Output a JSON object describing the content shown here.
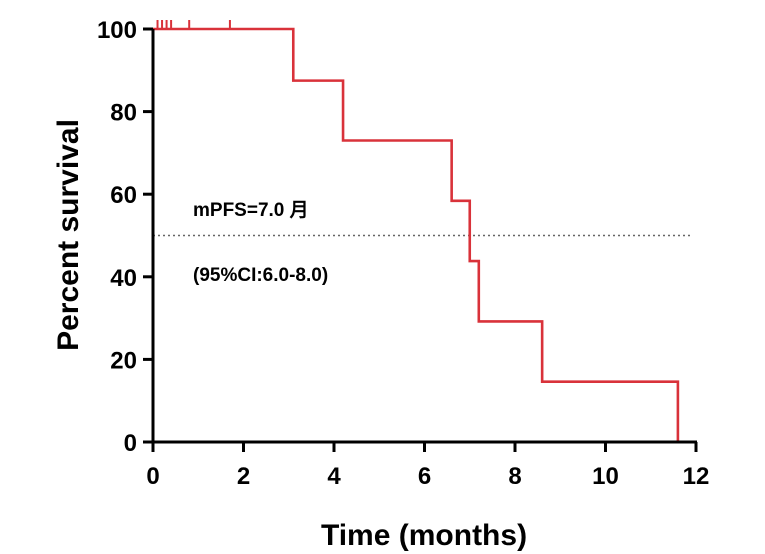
{
  "chart_data": {
    "type": "line",
    "subtype": "kaplan-meier survival curve",
    "xlabel": "Time (months)",
    "ylabel": "Percent survival",
    "xlim": [
      0,
      12
    ],
    "ylim": [
      0,
      100
    ],
    "xticks": [
      "0",
      "2",
      "4",
      "6",
      "8",
      "10",
      "12"
    ],
    "yticks": [
      "0",
      "20",
      "40",
      "60",
      "80",
      "100"
    ],
    "grid": false,
    "series_color": "#d9323a",
    "reference_line": {
      "y": 50,
      "style": "dotted",
      "color": "#666666"
    },
    "series": [
      {
        "steps": [
          {
            "x": 0,
            "y": 100
          },
          {
            "x": 3.1,
            "y": 87.5
          },
          {
            "x": 4.2,
            "y": 73
          },
          {
            "x": 6.6,
            "y": 58.4
          },
          {
            "x": 7.0,
            "y": 43.8
          },
          {
            "x": 7.2,
            "y": 29.2
          },
          {
            "x": 8.6,
            "y": 14.6
          },
          {
            "x": 11.6,
            "y": 0
          }
        ],
        "censored_x": [
          0.1,
          0.2,
          0.3,
          0.4,
          0.8,
          1.7
        ]
      }
    ],
    "annotations": {
      "median": "mPFS=7.0 月",
      "ci": "(95%CI:6.0-8.0)"
    }
  }
}
